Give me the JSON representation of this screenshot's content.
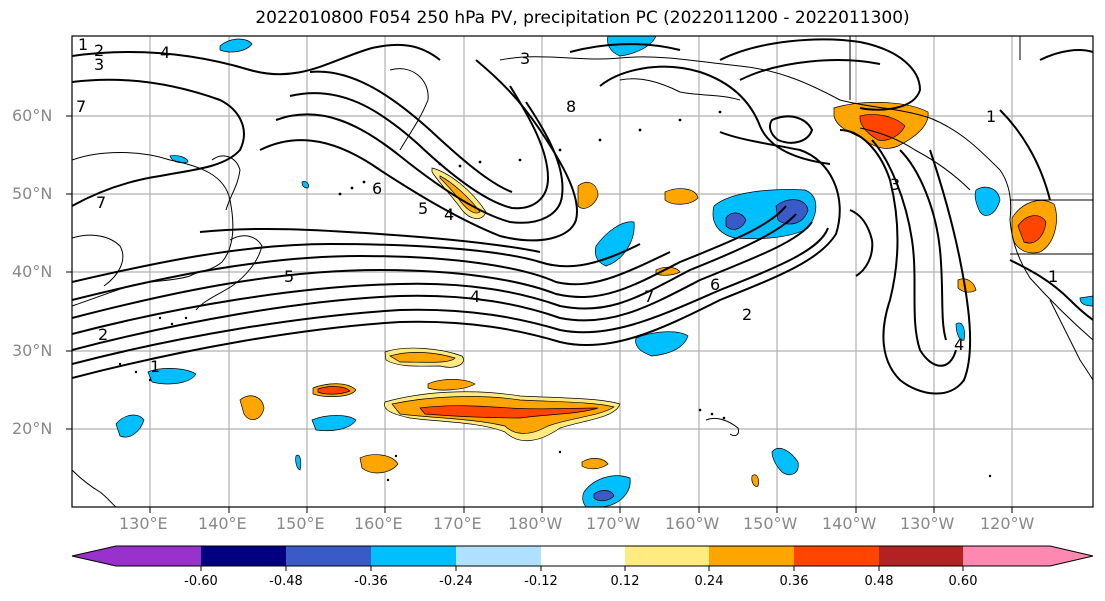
{
  "title": "2022010800 F054 250 hPa PV, precipitation PC (2022011200 - 2022011300)",
  "lat_labels": [
    "60°N",
    "50°N",
    "40°N",
    "30°N",
    "20°N"
  ],
  "lon_labels": [
    "130°E",
    "140°E",
    "150°E",
    "160°E",
    "170°E",
    "180°W",
    "170°W",
    "160°W",
    "150°W",
    "140°W",
    "130°W",
    "120°W"
  ],
  "contour_labels": [
    "1",
    "2",
    "3",
    "4",
    "7",
    "3",
    "8",
    "6",
    "5",
    "4",
    "5",
    "7",
    "6",
    "2",
    "1",
    "3",
    "1",
    "4",
    "2",
    "7",
    "4",
    "1"
  ],
  "colorbar": {
    "colors": [
      "#9932cc",
      "#000080",
      "#3a5bc7",
      "#00bfff",
      "#b0e0ff",
      "#ffffff",
      "#ffeb80",
      "#ffa500",
      "#ff4500",
      "#b22222",
      "#ff88b0"
    ],
    "tick_labels": [
      "-0.60",
      "-0.48",
      "-0.36",
      "-0.24",
      "-0.12",
      "0.12",
      "0.24",
      "0.36",
      "0.48",
      "0.60"
    ]
  }
}
